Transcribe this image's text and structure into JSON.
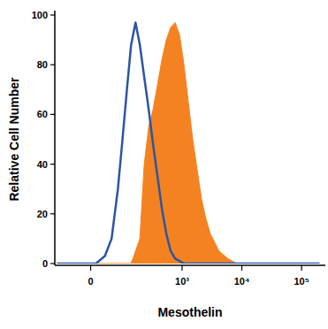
{
  "chart_data": {
    "type": "line",
    "x_label": "Mesothelin",
    "y_label": "Relative Cell Number",
    "x": [
      -100,
      12,
      34,
      53,
      74,
      92,
      112,
      134,
      161,
      192,
      229,
      273,
      324,
      386,
      458,
      543,
      644,
      764,
      906,
      1074,
      1270,
      1505,
      1783,
      2113,
      2503,
      2963,
      4160,
      5840,
      8200,
      200000
    ],
    "series": [
      {
        "type": "area",
        "color": "#f58220",
        "values": [
          0,
          0,
          0,
          0,
          0,
          0,
          0,
          0,
          5,
          10,
          40,
          55,
          62,
          72,
          82,
          90,
          95,
          97,
          92,
          80,
          65,
          50,
          38,
          26,
          18,
          12,
          5,
          2,
          0,
          0
        ]
      },
      {
        "type": "line",
        "color": "#2c55a3",
        "values": [
          0,
          0,
          3,
          10,
          30,
          50,
          70,
          88,
          97,
          88,
          75,
          62,
          48,
          35,
          22,
          12,
          5,
          2,
          1,
          0,
          0,
          0,
          0,
          0,
          0,
          0,
          0,
          0,
          0,
          0
        ]
      }
    ],
    "xlim": [
      -110,
      250000
    ],
    "xticks": [
      0,
      {
        "value": 1000,
        "label": "10³"
      },
      {
        "value": 10000,
        "label": "10⁴"
      },
      {
        "value": 100000,
        "label": "10⁵"
      }
    ],
    "ylim": [
      0,
      100
    ],
    "yticks": [
      0,
      20,
      40,
      60,
      80,
      100
    ]
  }
}
